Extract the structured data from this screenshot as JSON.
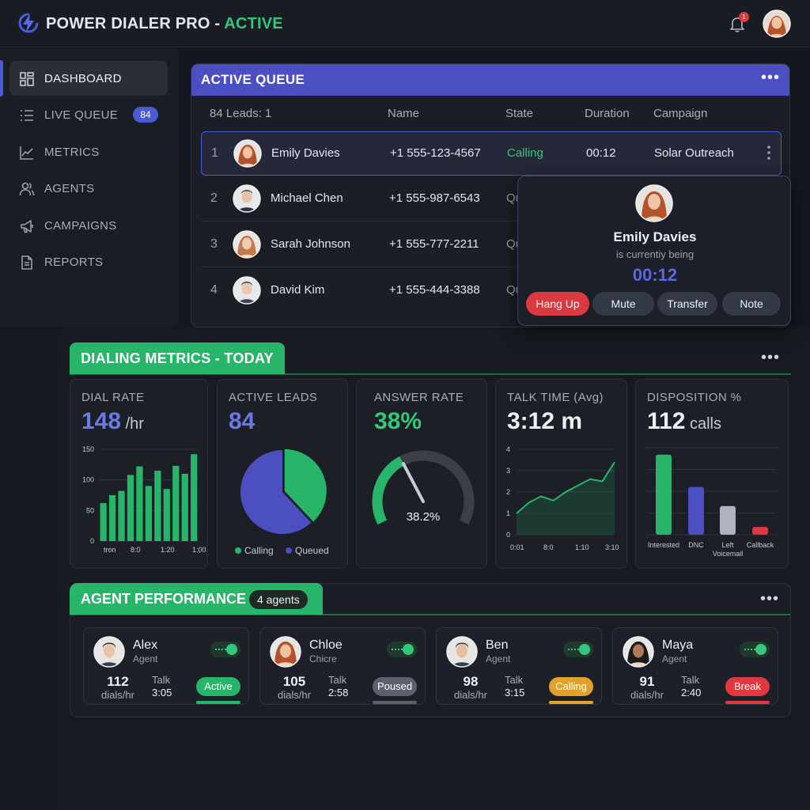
{
  "header": {
    "app_name": "POWER DIALER PRO",
    "separator": " - ",
    "status": "ACTIVE",
    "notification_count": "1"
  },
  "sidebar": {
    "items": [
      {
        "label": "DASHBOARD",
        "icon": "grid-icon",
        "active": true
      },
      {
        "label": "LIVE QUEUE",
        "icon": "list-icon",
        "badge": "84"
      },
      {
        "label": "METRICS",
        "icon": "chart-line-icon"
      },
      {
        "label": "AGENTS",
        "icon": "users-icon"
      },
      {
        "label": "CAMPAIGNS",
        "icon": "megaphone-icon"
      },
      {
        "label": "REPORTS",
        "icon": "document-icon"
      }
    ]
  },
  "queue": {
    "title": "ACTIVE QUEUE",
    "more": "•••",
    "columns": [
      "84 Leads: 1",
      "Name",
      "State",
      "Duration",
      "Campaign"
    ],
    "rows": [
      {
        "num": "1",
        "name": "Emily Davies",
        "phone": "+1 555-123-4567",
        "state": "Calling",
        "duration": "00:12",
        "campaign": "Solar Outreach"
      },
      {
        "num": "2",
        "name": "Michael Chen",
        "phone": "+1 555-987-6543",
        "state": "Qu"
      },
      {
        "num": "3",
        "name": "Sarah Johnson",
        "phone": "+1 555-777-2211",
        "state": "Qu"
      },
      {
        "num": "4",
        "name": "David Kim",
        "phone": "+1 555-444-3388",
        "state": "Qu"
      }
    ]
  },
  "popup": {
    "name": "Emily Davies",
    "subtitle": "is currentiy being",
    "timer": "00:12",
    "buttons": [
      "Hang Up",
      "Mute",
      "Transfer",
      "Note"
    ]
  },
  "metrics": {
    "title": "DIALING METRICS - TODAY",
    "more": "•••",
    "cards": {
      "dial_rate": {
        "title": "DIAL RATE",
        "value": "148",
        "unit": " /hr"
      },
      "active_leads": {
        "title": "ACTIVE LEADS",
        "value": "84"
      },
      "answer_rate": {
        "title": "ANSWER RATE",
        "value": "38%",
        "gauge_label": "38.2%"
      },
      "talk_time": {
        "title": "TALK TIME (Avg)",
        "value": "3:12 m"
      },
      "disposition": {
        "title": "DISPOSITION %",
        "value": "112",
        "unit": " calls"
      }
    }
  },
  "chart_data": [
    {
      "type": "bar",
      "title": "DIAL RATE",
      "yticks": [
        "0",
        "50",
        "100",
        "150"
      ],
      "ylim": [
        0,
        150
      ],
      "xticks": [
        "tron",
        "8:0",
        "1:20",
        "1:00"
      ],
      "values": [
        62,
        75,
        82,
        108,
        122,
        90,
        115,
        85,
        123,
        110,
        142
      ],
      "color": "#27b56a"
    },
    {
      "type": "pie",
      "title": "ACTIVE LEADS",
      "categories": [
        "Calling",
        "Queued"
      ],
      "values": [
        38,
        62
      ],
      "colors": [
        "#27b56a",
        "#4b4fc2"
      ]
    },
    {
      "type": "gauge",
      "title": "ANSWER RATE",
      "value": 38.2,
      "label": "38.2%",
      "color": "#27b56a"
    },
    {
      "type": "area",
      "title": "TALK TIME (Avg)",
      "yticks": [
        "0",
        "1",
        "2",
        "3",
        "4"
      ],
      "ylim": [
        0,
        4
      ],
      "xticks": [
        "0:01",
        "8:0",
        "1:10",
        "3:10"
      ],
      "values": [
        1.0,
        1.5,
        1.8,
        1.6,
        2.0,
        2.3,
        2.6,
        2.5,
        3.4
      ],
      "color": "#27b56a"
    },
    {
      "type": "bar",
      "title": "DISPOSITION %",
      "categories": [
        "Interested",
        "DNC",
        "Left Voicemail",
        "Callback"
      ],
      "values": [
        92,
        55,
        33,
        9
      ],
      "colors": [
        "#27b56a",
        "#4b4fc2",
        "#aeb3bd",
        "#e0383e"
      ]
    }
  ],
  "agents": {
    "title": "AGENT PERFORMANCE",
    "count": "4 agents",
    "more": "•••",
    "dials_label": "dials/hr",
    "talk_label": "Talk",
    "list": [
      {
        "name": "Alex",
        "role": "Agent",
        "dials": "112",
        "talk": "3:05",
        "status": "Active",
        "color": "#27b56a"
      },
      {
        "name": "Chloe",
        "role": "Chicre",
        "dials": "105",
        "talk": "2:58",
        "status": "Poused",
        "color": "#5b616d"
      },
      {
        "name": "Ben",
        "role": "Agent",
        "dials": "98",
        "talk": "3:15",
        "status": "Calling",
        "color": "#e0a22a"
      },
      {
        "name": "Maya",
        "role": "Agent",
        "dials": "91",
        "talk": "2:40",
        "status": "Break",
        "color": "#e0383e"
      }
    ]
  }
}
